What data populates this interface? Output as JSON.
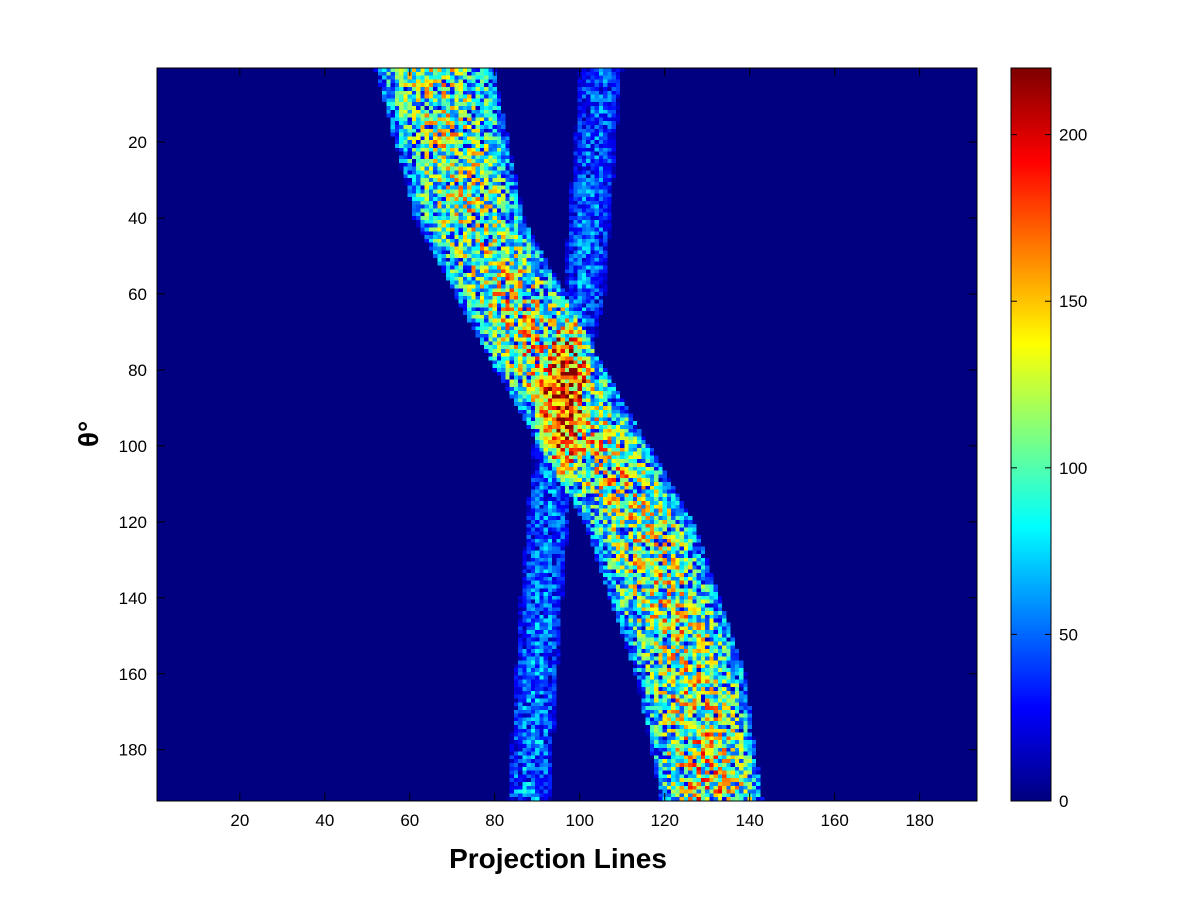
{
  "chart_data": {
    "type": "heatmap",
    "title": "",
    "xlabel": "Projection Lines",
    "ylabel": "θ°",
    "xlim": [
      0.5,
      193.5
    ],
    "ylim": [
      0.5,
      193.5
    ],
    "y_direction": "reversed",
    "x_ticks": [
      "20",
      "40",
      "60",
      "80",
      "100",
      "120",
      "140",
      "160",
      "180"
    ],
    "y_ticks": [
      "20",
      "40",
      "60",
      "80",
      "100",
      "120",
      "140",
      "160",
      "180"
    ],
    "colormap": "jet",
    "color_range": [
      0,
      220
    ],
    "colorbar_ticks": [
      "0",
      "50",
      "100",
      "150",
      "200"
    ],
    "grid": false,
    "bands": [
      {
        "name": "wide band",
        "points": [
          {
            "theta": 1,
            "center": 66,
            "half_width": 14,
            "mean_value": 95
          },
          {
            "theta": 40,
            "center": 74,
            "half_width": 13,
            "mean_value": 95
          },
          {
            "theta": 80,
            "center": 93,
            "half_width": 13,
            "mean_value": 110
          },
          {
            "theta": 120,
            "center": 114,
            "half_width": 13,
            "mean_value": 100
          },
          {
            "theta": 160,
            "center": 126,
            "half_width": 13,
            "mean_value": 100
          },
          {
            "theta": 193,
            "center": 131,
            "half_width": 12,
            "mean_value": 110
          }
        ]
      },
      {
        "name": "narrow band",
        "points": [
          {
            "theta": 1,
            "center": 105,
            "half_width": 5,
            "mean_value": 40
          },
          {
            "theta": 60,
            "center": 101,
            "half_width": 5,
            "mean_value": 45
          },
          {
            "theta": 100,
            "center": 94,
            "half_width": 5,
            "mean_value": 45
          },
          {
            "theta": 140,
            "center": 91,
            "half_width": 5,
            "mean_value": 45
          },
          {
            "theta": 193,
            "center": 88,
            "half_width": 5,
            "mean_value": 50
          }
        ]
      }
    ],
    "hotspot": {
      "theta": 88,
      "center": 95,
      "peak_value": 200
    }
  }
}
